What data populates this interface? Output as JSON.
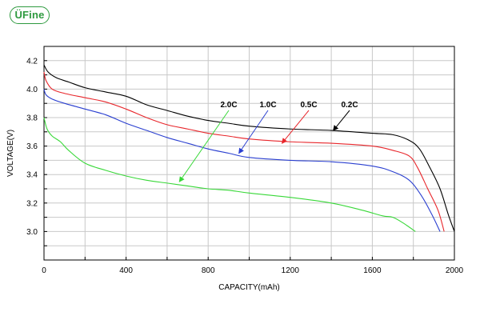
{
  "logo": {
    "text": "ÜFine"
  },
  "colors": {
    "brand": "#2e9a3f",
    "grid": "#c8c8c8",
    "series_0_2C": "#000000",
    "series_0_5C": "#e8262b",
    "series_1_0C": "#2a3fd0",
    "series_2_0C": "#38d838"
  },
  "chart_data": {
    "type": "line",
    "title": "",
    "xlabel": "CAPACITY(mAh)",
    "ylabel": "VOLTAGE(V)",
    "xlim": [
      0,
      2000
    ],
    "ylim": [
      2.8,
      4.3
    ],
    "xticks": [
      "0",
      "400",
      "800",
      "1200",
      "1600",
      "2000"
    ],
    "yticks": [
      "3.0",
      "3.2",
      "3.4",
      "3.6",
      "3.8",
      "4.0",
      "4.2"
    ],
    "grid": true,
    "series": [
      {
        "name": "0.2C",
        "color": "#000000",
        "points": [
          [
            0,
            4.17
          ],
          [
            20,
            4.12
          ],
          [
            60,
            4.08
          ],
          [
            120,
            4.05
          ],
          [
            200,
            4.01
          ],
          [
            300,
            3.98
          ],
          [
            400,
            3.95
          ],
          [
            500,
            3.89
          ],
          [
            600,
            3.85
          ],
          [
            700,
            3.81
          ],
          [
            800,
            3.78
          ],
          [
            900,
            3.76
          ],
          [
            1000,
            3.74
          ],
          [
            1200,
            3.72
          ],
          [
            1400,
            3.71
          ],
          [
            1600,
            3.69
          ],
          [
            1700,
            3.68
          ],
          [
            1780,
            3.64
          ],
          [
            1830,
            3.58
          ],
          [
            1880,
            3.45
          ],
          [
            1930,
            3.3
          ],
          [
            1970,
            3.12
          ],
          [
            2000,
            3.0
          ]
        ]
      },
      {
        "name": "0.5C",
        "color": "#e8262b",
        "points": [
          [
            0,
            4.12
          ],
          [
            10,
            4.06
          ],
          [
            40,
            4.0
          ],
          [
            100,
            3.97
          ],
          [
            200,
            3.94
          ],
          [
            300,
            3.91
          ],
          [
            400,
            3.86
          ],
          [
            500,
            3.8
          ],
          [
            600,
            3.75
          ],
          [
            700,
            3.72
          ],
          [
            800,
            3.69
          ],
          [
            900,
            3.67
          ],
          [
            1000,
            3.65
          ],
          [
            1200,
            3.63
          ],
          [
            1400,
            3.62
          ],
          [
            1600,
            3.6
          ],
          [
            1700,
            3.57
          ],
          [
            1780,
            3.53
          ],
          [
            1820,
            3.45
          ],
          [
            1870,
            3.3
          ],
          [
            1920,
            3.15
          ],
          [
            1950,
            3.0
          ]
        ]
      },
      {
        "name": "1.0C",
        "color": "#2a3fd0",
        "points": [
          [
            0,
            4.0
          ],
          [
            10,
            3.96
          ],
          [
            40,
            3.93
          ],
          [
            100,
            3.9
          ],
          [
            200,
            3.86
          ],
          [
            300,
            3.82
          ],
          [
            400,
            3.76
          ],
          [
            500,
            3.71
          ],
          [
            600,
            3.66
          ],
          [
            700,
            3.62
          ],
          [
            800,
            3.58
          ],
          [
            900,
            3.55
          ],
          [
            1000,
            3.52
          ],
          [
            1200,
            3.5
          ],
          [
            1400,
            3.49
          ],
          [
            1600,
            3.46
          ],
          [
            1700,
            3.42
          ],
          [
            1780,
            3.36
          ],
          [
            1840,
            3.25
          ],
          [
            1890,
            3.12
          ],
          [
            1930,
            3.0
          ]
        ]
      },
      {
        "name": "2.0C",
        "color": "#38d838",
        "points": [
          [
            0,
            3.8
          ],
          [
            15,
            3.72
          ],
          [
            40,
            3.67
          ],
          [
            80,
            3.63
          ],
          [
            120,
            3.57
          ],
          [
            200,
            3.48
          ],
          [
            300,
            3.43
          ],
          [
            400,
            3.39
          ],
          [
            500,
            3.36
          ],
          [
            600,
            3.34
          ],
          [
            700,
            3.32
          ],
          [
            800,
            3.3
          ],
          [
            900,
            3.29
          ],
          [
            1000,
            3.27
          ],
          [
            1200,
            3.24
          ],
          [
            1400,
            3.2
          ],
          [
            1550,
            3.15
          ],
          [
            1650,
            3.11
          ],
          [
            1700,
            3.1
          ],
          [
            1750,
            3.06
          ],
          [
            1810,
            3.0
          ]
        ]
      }
    ],
    "annotations": [
      {
        "label": "2.0C",
        "target": [
          660,
          3.35
        ],
        "series": "2.0C"
      },
      {
        "label": "1.0C",
        "target": [
          950,
          3.55
        ],
        "series": "1.0C"
      },
      {
        "label": "0.5C",
        "target": [
          1160,
          3.62
        ],
        "series": "0.5C"
      },
      {
        "label": "0.2C",
        "target": [
          1410,
          3.71
        ],
        "series": "0.2C"
      }
    ]
  }
}
